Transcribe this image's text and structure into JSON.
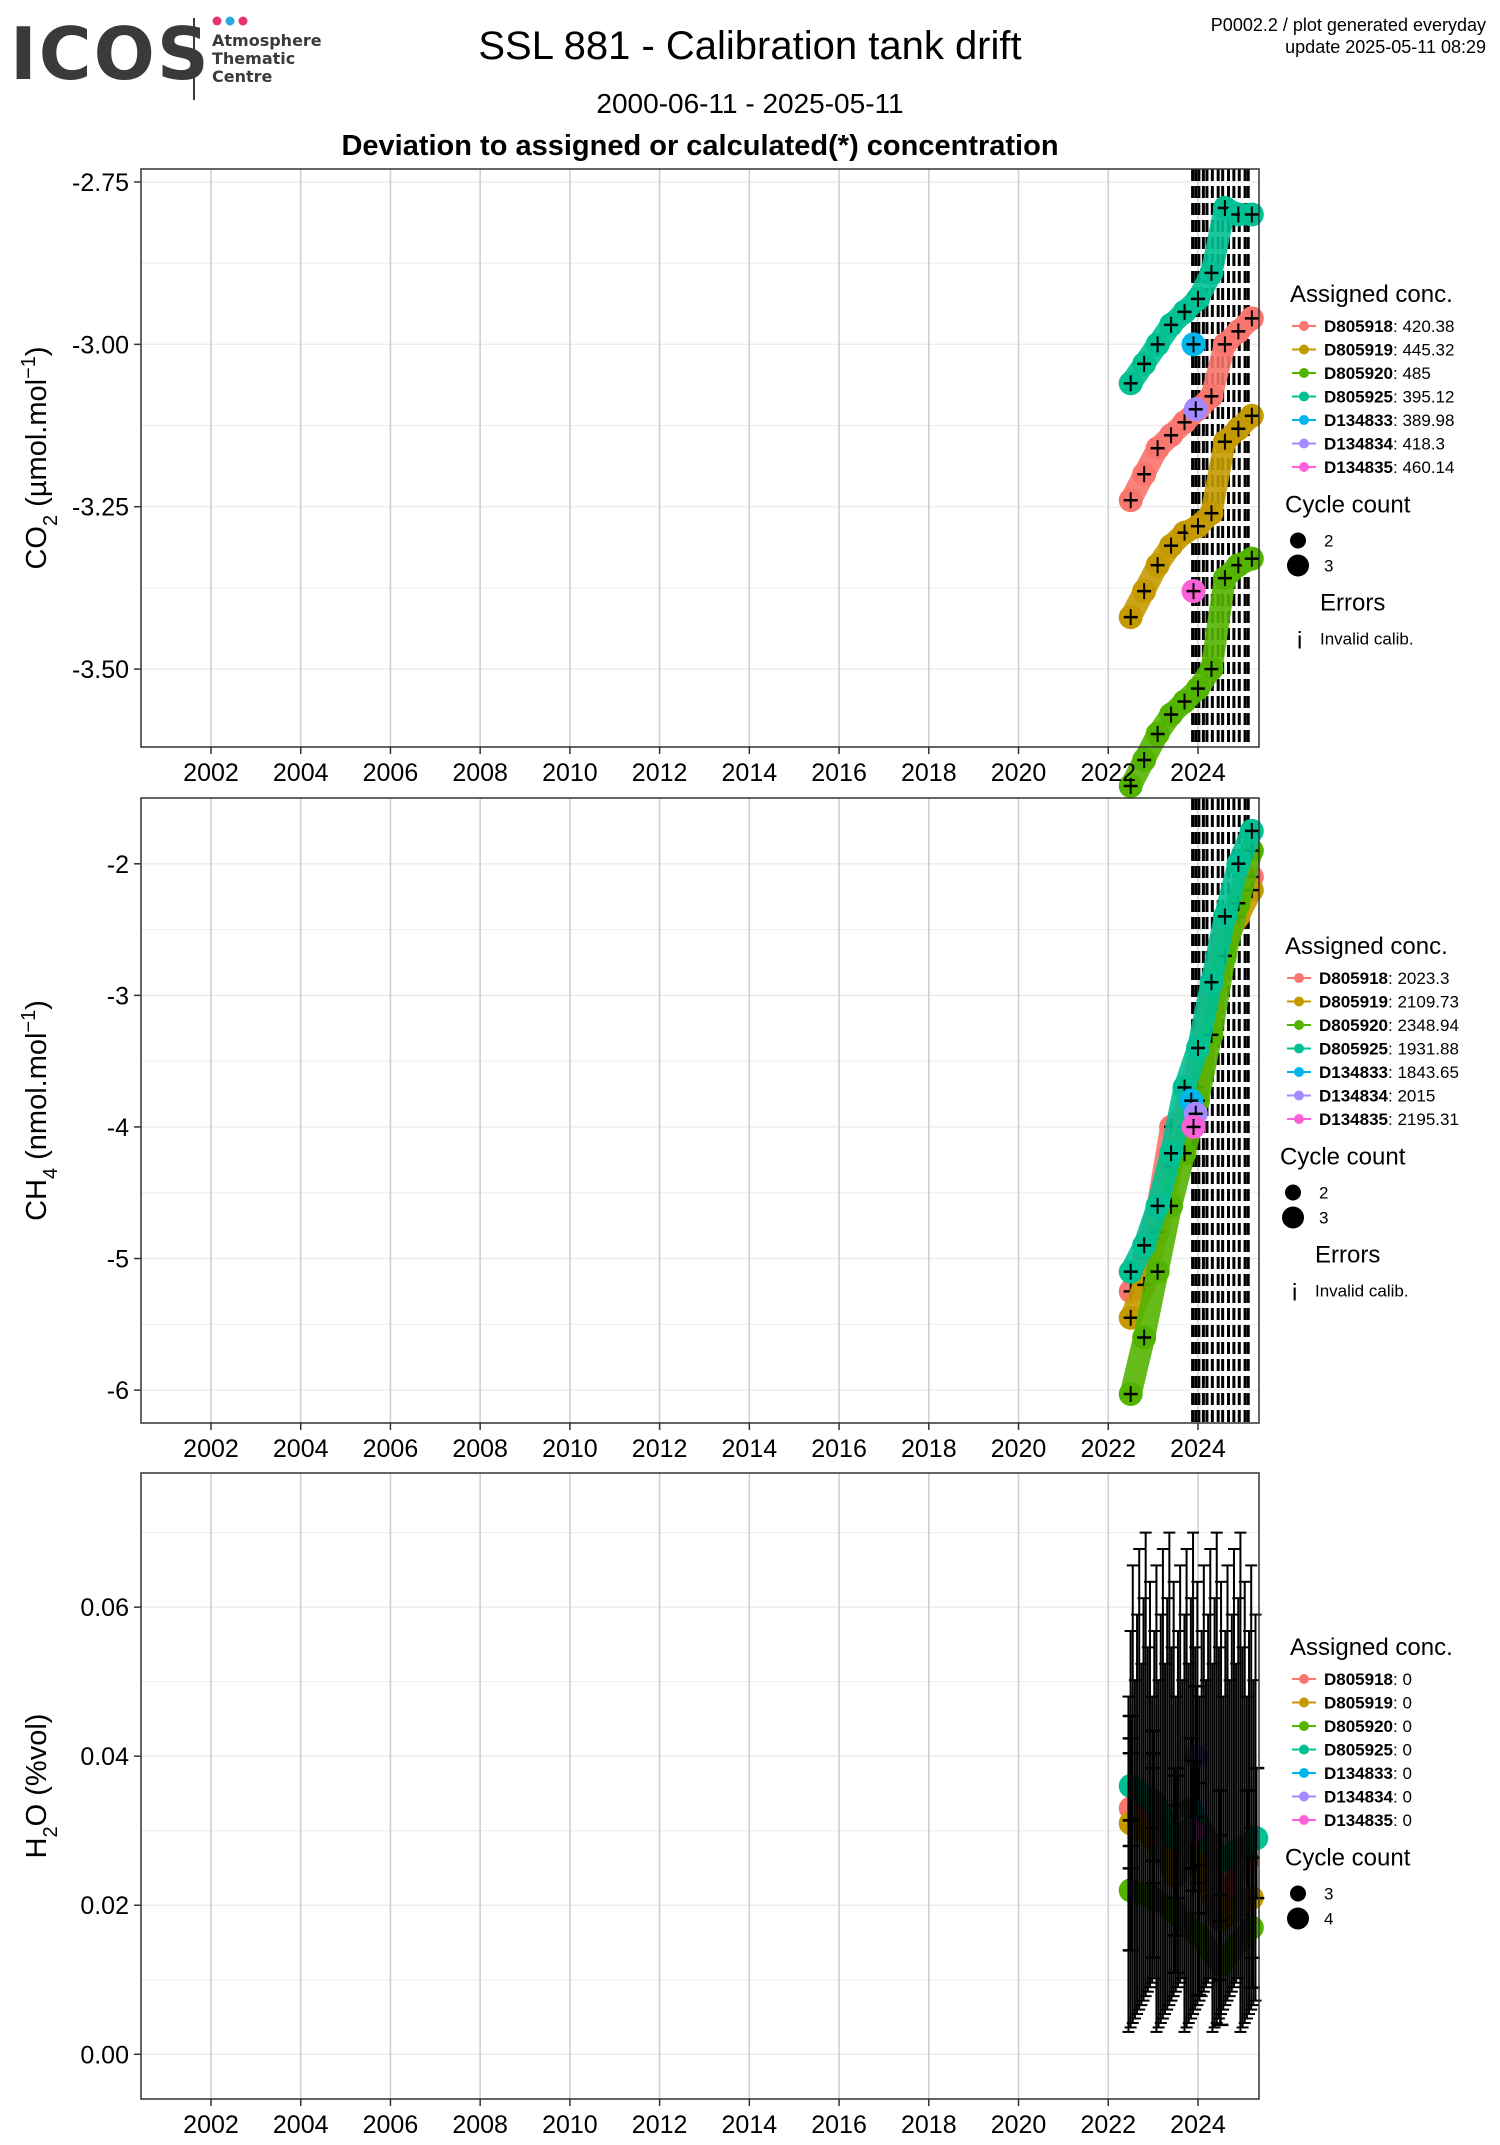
{
  "logo": {
    "wordmark": "ICOS",
    "sub_lines": [
      "Atmosphere",
      "Thematic",
      "Centre"
    ],
    "dot_colors": [
      "#e8336d",
      "#2aa9e0",
      "#e8336d"
    ]
  },
  "header": {
    "title": "SSL 881 - Calibration tank drift",
    "date_range": "2000-06-11 - 2025-05-11",
    "heading": "Deviation to assigned or calculated(*) concentration",
    "meta_line1": "P0002.2 / plot generated everyday",
    "meta_line2": "update  2025-05-11 08:29"
  },
  "colors": {
    "D805918": "#f8766d",
    "D805919": "#c49a00",
    "D805920": "#53b400",
    "D805925": "#00c094",
    "D134833": "#00b6eb",
    "D134834": "#a58aff",
    "D134835": "#fb61d7"
  },
  "chart_data": [
    {
      "type": "scatter",
      "ylabel_main": "CO",
      "ylabel_sub": "2",
      "ylabel_rest": " (µmol.mol",
      "ylabel_sup": "−1",
      "ylabel_close": ")",
      "xlim": [
        2000.44,
        2025.36
      ],
      "ylim": [
        -3.62,
        -2.73
      ],
      "yticks": [
        "-2.75",
        "-3.00",
        "-3.25",
        "-3.50"
      ],
      "ytick_values": [
        -2.75,
        -3.0,
        -3.25,
        -3.5
      ],
      "xticks": [
        "2002",
        "2004",
        "2006",
        "2008",
        "2010",
        "2012",
        "2014",
        "2016",
        "2018",
        "2020",
        "2022",
        "2024"
      ],
      "legend": {
        "title": "Assigned conc.",
        "items": [
          {
            "id": "D805918",
            "value": "420.38"
          },
          {
            "id": "D805919",
            "value": "445.32"
          },
          {
            "id": "D805920",
            "value": "485"
          },
          {
            "id": "D805925",
            "value": "395.12"
          },
          {
            "id": "D134833",
            "value": "389.98"
          },
          {
            "id": "D134834",
            "value": "418.3"
          },
          {
            "id": "D134835",
            "value": "460.14"
          }
        ],
        "size_title": "Cycle count",
        "sizes": [
          "2",
          "3"
        ],
        "errors_title": "Errors",
        "errors_glyph": "i",
        "errors_label": "Invalid calib."
      },
      "series": [
        {
          "name": "D805918",
          "x": [
            2022.5,
            2022.8,
            2023.1,
            2023.4,
            2023.7,
            2024.0,
            2024.3,
            2024.6,
            2024.9,
            2025.2
          ],
          "y": [
            -3.24,
            -3.2,
            -3.16,
            -3.14,
            -3.12,
            -3.1,
            -3.08,
            -3.0,
            -2.98,
            -2.96
          ]
        },
        {
          "name": "D805919",
          "x": [
            2022.5,
            2022.8,
            2023.1,
            2023.4,
            2023.7,
            2024.0,
            2024.3,
            2024.6,
            2024.9,
            2025.2
          ],
          "y": [
            -3.42,
            -3.38,
            -3.34,
            -3.31,
            -3.29,
            -3.28,
            -3.26,
            -3.15,
            -3.13,
            -3.11
          ]
        },
        {
          "name": "D805920",
          "x": [
            2022.5,
            2022.8,
            2023.1,
            2023.4,
            2023.7,
            2024.0,
            2024.3,
            2024.6,
            2024.9,
            2025.2
          ],
          "y": [
            -3.68,
            -3.64,
            -3.6,
            -3.57,
            -3.55,
            -3.53,
            -3.5,
            -3.36,
            -3.34,
            -3.33
          ]
        },
        {
          "name": "D805925",
          "x": [
            2022.5,
            2022.8,
            2023.1,
            2023.4,
            2023.7,
            2024.0,
            2024.3,
            2024.6,
            2024.9,
            2025.2
          ],
          "y": [
            -3.06,
            -3.03,
            -3.0,
            -2.97,
            -2.95,
            -2.93,
            -2.89,
            -2.79,
            -2.8,
            -2.8
          ]
        },
        {
          "name": "D134833",
          "x": [
            2023.9
          ],
          "y": [
            -3.0
          ]
        },
        {
          "name": "D134834",
          "x": [
            2023.95
          ],
          "y": [
            -3.1
          ]
        },
        {
          "name": "D134835",
          "x": [
            2023.9
          ],
          "y": [
            -3.38
          ]
        }
      ]
    },
    {
      "type": "scatter",
      "ylabel_main": "CH",
      "ylabel_sub": "4",
      "ylabel_rest": " (nmol.mol",
      "ylabel_sup": "−1",
      "ylabel_close": ")",
      "xlim": [
        2000.44,
        2025.36
      ],
      "ylim": [
        -6.25,
        -1.5
      ],
      "yticks": [
        "-2",
        "-3",
        "-4",
        "-5",
        "-6"
      ],
      "ytick_values": [
        -2,
        -3,
        -4,
        -5,
        -6
      ],
      "xticks": [
        "2002",
        "2004",
        "2006",
        "2008",
        "2010",
        "2012",
        "2014",
        "2016",
        "2018",
        "2020",
        "2022",
        "2024"
      ],
      "legend": {
        "title": "Assigned conc.",
        "items": [
          {
            "id": "D805918",
            "value": "2023.3"
          },
          {
            "id": "D805919",
            "value": "2109.73"
          },
          {
            "id": "D805920",
            "value": "2348.94"
          },
          {
            "id": "D805925",
            "value": "1931.88"
          },
          {
            "id": "D134833",
            "value": "1843.65"
          },
          {
            "id": "D134834",
            "value": "2015"
          },
          {
            "id": "D134835",
            "value": "2195.31"
          }
        ],
        "size_title": "Cycle count",
        "sizes": [
          "2",
          "3"
        ],
        "errors_title": "Errors",
        "errors_glyph": "i",
        "errors_label": "Invalid calib."
      },
      "series": [
        {
          "name": "D805918",
          "x": [
            2022.5,
            2022.8,
            2023.1,
            2023.4,
            2023.7,
            2024.0,
            2024.3,
            2024.6,
            2024.9,
            2025.2
          ],
          "y": [
            -5.25,
            -5.0,
            -4.6,
            -4.0,
            -3.9,
            -3.5,
            -3.0,
            -2.5,
            -2.3,
            -2.1
          ]
        },
        {
          "name": "D805919",
          "x": [
            2022.5,
            2022.8,
            2023.1,
            2023.4,
            2023.7,
            2024.0,
            2024.3,
            2024.6,
            2024.9,
            2025.2
          ],
          "y": [
            -5.45,
            -5.2,
            -4.8,
            -4.3,
            -4.0,
            -3.7,
            -3.1,
            -2.6,
            -2.4,
            -2.2
          ]
        },
        {
          "name": "D805920",
          "x": [
            2022.5,
            2022.8,
            2023.1,
            2023.4,
            2023.7,
            2024.0,
            2024.3,
            2024.6,
            2024.9,
            2025.2
          ],
          "y": [
            -6.03,
            -5.6,
            -5.1,
            -4.6,
            -4.2,
            -3.8,
            -3.3,
            -2.7,
            -2.3,
            -1.9
          ]
        },
        {
          "name": "D805925",
          "x": [
            2022.5,
            2022.8,
            2023.1,
            2023.4,
            2023.7,
            2024.0,
            2024.3,
            2024.6,
            2024.9,
            2025.2
          ],
          "y": [
            -5.1,
            -4.9,
            -4.6,
            -4.2,
            -3.7,
            -3.4,
            -2.9,
            -2.4,
            -2.0,
            -1.75
          ]
        },
        {
          "name": "D134833",
          "x": [
            2023.85
          ],
          "y": [
            -3.8
          ]
        },
        {
          "name": "D134834",
          "x": [
            2023.95
          ],
          "y": [
            -3.9
          ]
        },
        {
          "name": "D134835",
          "x": [
            2023.9
          ],
          "y": [
            -4.0
          ]
        }
      ]
    },
    {
      "type": "scatter",
      "ylabel_main": "H",
      "ylabel_sub": "2",
      "ylabel_rest": "O (%vol)",
      "ylabel_sup": "",
      "ylabel_close": "",
      "xlim": [
        2000.44,
        2025.36
      ],
      "ylim": [
        -0.006,
        0.078
      ],
      "yticks": [
        "0.06",
        "0.04",
        "0.02",
        "0.00"
      ],
      "ytick_values": [
        0.06,
        0.04,
        0.02,
        0.0
      ],
      "xticks": [
        "2002",
        "2004",
        "2006",
        "2008",
        "2010",
        "2012",
        "2014",
        "2016",
        "2018",
        "2020",
        "2022",
        "2024"
      ],
      "legend": {
        "title": "Assigned conc.",
        "items": [
          {
            "id": "D805918",
            "value": "0"
          },
          {
            "id": "D805919",
            "value": "0"
          },
          {
            "id": "D805920",
            "value": "0"
          },
          {
            "id": "D805925",
            "value": "0"
          },
          {
            "id": "D134833",
            "value": "0"
          },
          {
            "id": "D134834",
            "value": "0"
          },
          {
            "id": "D134835",
            "value": "0"
          }
        ],
        "size_title": "Cycle count",
        "sizes": [
          "3",
          "4"
        ],
        "errors_title": "",
        "errors_glyph": "",
        "errors_label": ""
      },
      "series": [
        {
          "name": "D805918",
          "x": [
            2022.5,
            2023.0,
            2023.5,
            2024.0,
            2024.5,
            2025.1
          ],
          "y": [
            0.033,
            0.031,
            0.028,
            0.03,
            0.02,
            0.026
          ]
        },
        {
          "name": "D805919",
          "x": [
            2022.5,
            2023.0,
            2023.5,
            2024.0,
            2024.5,
            2025.2
          ],
          "y": [
            0.031,
            0.029,
            0.024,
            0.027,
            0.018,
            0.021
          ]
        },
        {
          "name": "D805920",
          "x": [
            2022.5,
            2023.0,
            2023.5,
            2024.0,
            2024.5,
            2025.2
          ],
          "y": [
            0.022,
            0.021,
            0.019,
            0.016,
            0.012,
            0.017
          ]
        },
        {
          "name": "D805925",
          "x": [
            2022.5,
            2023.0,
            2023.5,
            2024.0,
            2024.5,
            2025.3
          ],
          "y": [
            0.036,
            0.034,
            0.029,
            0.031,
            0.026,
            0.029
          ]
        },
        {
          "name": "D134833",
          "x": [
            2023.85
          ],
          "y": [
            0.033
          ]
        },
        {
          "name": "D134834",
          "x": [
            2023.95
          ],
          "y": [
            0.04
          ]
        },
        {
          "name": "D134835",
          "x": [
            2023.9
          ],
          "y": [
            0.03
          ]
        }
      ]
    }
  ]
}
